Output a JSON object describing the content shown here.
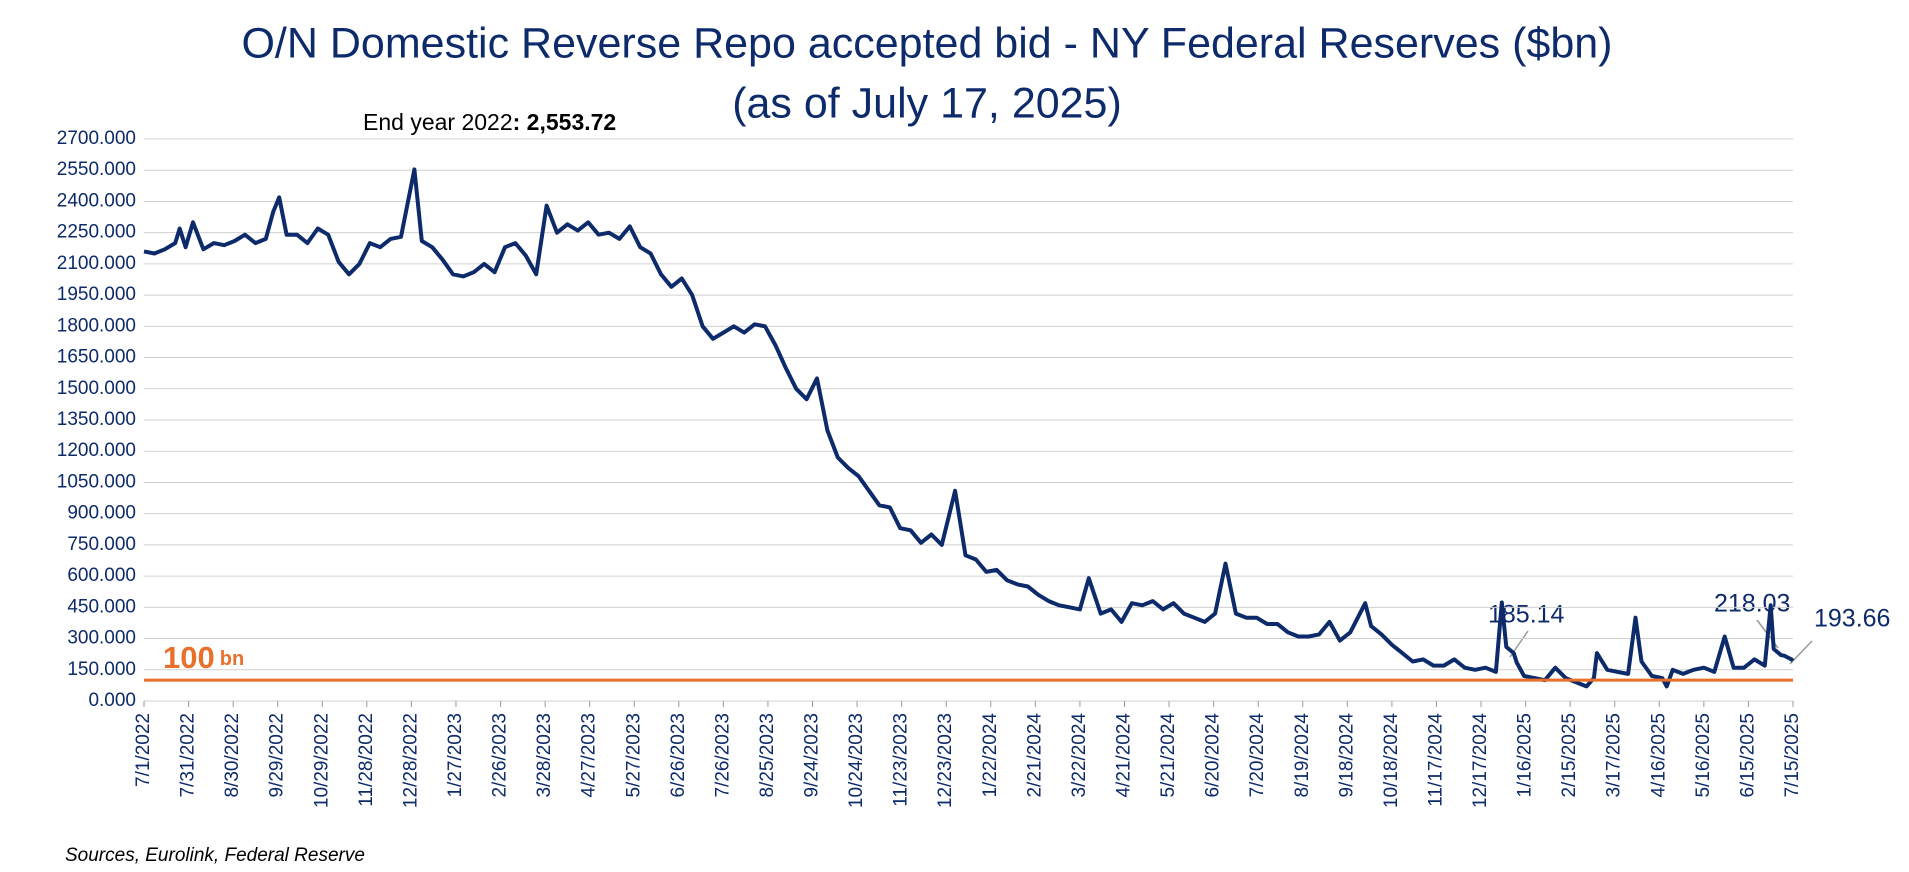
{
  "chart_data": {
    "type": "line",
    "title": "O/N Domestic Reverse Repo accepted bid - NY Federal Reserves ($bn)",
    "subtitle": "(as of July 17, 2025)",
    "source": "Sources, Eurolink, Federal Reserve",
    "color": "#0d2a6b",
    "grid": true,
    "annotations": [
      "End year 2022",
      ": 2,553.72",
      "185.14",
      "218.03",
      "193.66"
    ],
    "reference_line": {
      "value": 100,
      "unit": "bn",
      "color": "#e8702a"
    },
    "xlim": [
      "7/1/2022",
      "7/15/2025"
    ],
    "xticks": [
      "7/1/2022",
      "7/31/2022",
      "8/30/2022",
      "9/29/2022",
      "10/29/2022",
      "11/28/2022",
      "12/28/2022",
      "1/27/2023",
      "2/26/2023",
      "3/28/2023",
      "4/27/2023",
      "5/27/2023",
      "6/26/2023",
      "7/26/2023",
      "8/25/2023",
      "9/24/2023",
      "10/24/2023",
      "11/23/2023",
      "12/23/2023",
      "1/22/2024",
      "2/21/2024",
      "3/22/2024",
      "4/21/2024",
      "5/21/2024",
      "6/20/2024",
      "7/20/2024",
      "8/19/2024",
      "9/18/2024",
      "10/18/2024",
      "11/17/2024",
      "12/17/2024",
      "1/16/2025",
      "2/15/2025",
      "3/17/2025",
      "4/16/2025",
      "5/16/2025",
      "6/15/2025",
      "7/15/2025"
    ],
    "ylim": [
      0,
      2700
    ],
    "yticks": [
      {
        "value": 0,
        "label": "0.000"
      },
      {
        "value": 150,
        "label": "150.000"
      },
      {
        "value": 300,
        "label": "300.000"
      },
      {
        "value": 450,
        "label": "450.000"
      },
      {
        "value": 600,
        "label": "600.000"
      },
      {
        "value": 750,
        "label": "750.000"
      },
      {
        "value": 900,
        "label": "900.000"
      },
      {
        "value": 1050,
        "label": "1050.000"
      },
      {
        "value": 1200,
        "label": "1200.000"
      },
      {
        "value": 1350,
        "label": "1350.000"
      },
      {
        "value": 1500,
        "label": "1500.000"
      },
      {
        "value": 1650,
        "label": "1650.000"
      },
      {
        "value": 1800,
        "label": "1800.000"
      },
      {
        "value": 1950,
        "label": "1950.000"
      },
      {
        "value": 2100,
        "label": "2100.000"
      },
      {
        "value": 2250,
        "label": "2250.000"
      },
      {
        "value": 2400,
        "label": "2400.000"
      },
      {
        "value": 2550,
        "label": "2550.000"
      },
      {
        "value": 2700,
        "label": "2700.000"
      }
    ],
    "x": [
      "7/1/2022",
      "7/8/2022",
      "7/15/2022",
      "7/22/2022",
      "7/25/2022",
      "7/29/2022",
      "8/3/2022",
      "8/10/2022",
      "8/17/2022",
      "8/24/2022",
      "8/31/2022",
      "9/7/2022",
      "9/14/2022",
      "9/21/2022",
      "9/26/2022",
      "9/30/2022",
      "10/5/2022",
      "10/12/2022",
      "10/19/2022",
      "10/26/2022",
      "11/2/2022",
      "11/9/2022",
      "11/16/2022",
      "11/23/2022",
      "11/30/2022",
      "12/7/2022",
      "12/14/2022",
      "12/21/2022",
      "12/30/2022",
      "1/4/2023",
      "1/11/2023",
      "1/18/2023",
      "1/25/2023",
      "2/1/2023",
      "2/8/2023",
      "2/15/2023",
      "2/22/2023",
      "3/1/2023",
      "3/8/2023",
      "3/15/2023",
      "3/22/2023",
      "3/29/2023",
      "4/5/2023",
      "4/12/2023",
      "4/19/2023",
      "4/26/2023",
      "5/3/2023",
      "5/10/2023",
      "5/17/2023",
      "5/24/2023",
      "5/31/2023",
      "6/7/2023",
      "6/14/2023",
      "6/21/2023",
      "6/28/2023",
      "7/5/2023",
      "7/12/2023",
      "7/19/2023",
      "7/26/2023",
      "8/2/2023",
      "8/9/2023",
      "8/16/2023",
      "8/23/2023",
      "8/30/2023",
      "9/6/2023",
      "9/13/2023",
      "9/20/2023",
      "9/27/2023",
      "10/4/2023",
      "10/11/2023",
      "10/18/2023",
      "10/25/2023",
      "11/1/2023",
      "11/8/2023",
      "11/15/2023",
      "11/22/2023",
      "11/29/2023",
      "12/6/2023",
      "12/13/2023",
      "12/20/2023",
      "12/29/2023",
      "1/5/2024",
      "1/12/2024",
      "1/19/2024",
      "1/26/2024",
      "2/2/2024",
      "2/9/2024",
      "2/16/2024",
      "2/23/2024",
      "3/1/2024",
      "3/8/2024",
      "3/15/2024",
      "3/22/2024",
      "3/28/2024",
      "4/5/2024",
      "4/12/2024",
      "4/19/2024",
      "4/26/2024",
      "5/3/2024",
      "5/10/2024",
      "5/17/2024",
      "5/24/2024",
      "5/31/2024",
      "6/7/2024",
      "6/14/2024",
      "6/21/2024",
      "6/28/2024",
      "7/5/2024",
      "7/12/2024",
      "7/19/2024",
      "7/26/2024",
      "8/2/2024",
      "8/9/2024",
      "8/16/2024",
      "8/23/2024",
      "8/30/2024",
      "9/6/2024",
      "9/13/2024",
      "9/20/2024",
      "9/30/2024",
      "10/4/2024",
      "10/11/2024",
      "10/18/2024",
      "10/25/2024",
      "11/1/2024",
      "11/8/2024",
      "11/15/2024",
      "11/22/2024",
      "11/29/2024",
      "12/6/2024",
      "12/13/2024",
      "12/20/2024",
      "12/27/2024",
      "12/31/2024",
      "1/3/2025",
      "1/8/2025",
      "1/10/2025",
      "1/15/2025",
      "1/22/2025",
      "1/29/2025",
      "2/5/2025",
      "2/12/2025",
      "2/19/2025",
      "2/26/2025",
      "3/3/2025",
      "3/5/2025",
      "3/12/2025",
      "3/19/2025",
      "3/26/2025",
      "3/31/2025",
      "4/4/2025",
      "4/11/2025",
      "4/18/2025",
      "4/21/2025",
      "4/25/2025",
      "5/2/2025",
      "5/9/2025",
      "5/16/2025",
      "5/23/2025",
      "5/30/2025",
      "6/5/2025",
      "6/12/2025",
      "6/19/2025",
      "6/26/2025",
      "6/30/2025",
      "7/2/2025",
      "7/7/2025",
      "7/9/2025",
      "7/14/2025",
      "7/15/2025"
    ],
    "values": [
      2160,
      2150,
      2170,
      2200,
      2270,
      2180,
      2300,
      2170,
      2200,
      2190,
      2210,
      2240,
      2200,
      2220,
      2350,
      2420,
      2240,
      2240,
      2200,
      2270,
      2240,
      2110,
      2050,
      2100,
      2200,
      2180,
      2220,
      2230,
      2553.72,
      2210,
      2180,
      2120,
      2050,
      2040,
      2060,
      2100,
      2060,
      2180,
      2200,
      2140,
      2050,
      2380,
      2250,
      2290,
      2260,
      2300,
      2240,
      2250,
      2220,
      2280,
      2180,
      2150,
      2050,
      1990,
      2030,
      1950,
      1800,
      1740,
      1770,
      1800,
      1770,
      1810,
      1800,
      1710,
      1600,
      1500,
      1450,
      1550,
      1300,
      1170,
      1120,
      1080,
      1010,
      940,
      930,
      830,
      820,
      760,
      800,
      750,
      1010,
      700,
      680,
      620,
      630,
      580,
      560,
      550,
      510,
      480,
      460,
      450,
      440,
      590,
      420,
      440,
      380,
      470,
      460,
      480,
      440,
      470,
      420,
      400,
      380,
      420,
      660,
      420,
      400,
      400,
      370,
      370,
      330,
      310,
      310,
      320,
      380,
      290,
      330,
      470,
      360,
      320,
      270,
      230,
      190,
      200,
      170,
      170,
      200,
      160,
      150,
      160,
      140,
      473,
      260,
      230,
      185.14,
      120,
      110,
      100,
      160,
      110,
      90,
      70,
      110,
      230,
      150,
      140,
      130,
      400,
      190,
      120,
      110,
      70,
      150,
      130,
      150,
      160,
      140,
      310,
      160,
      160,
      200,
      170,
      460,
      250,
      220,
      218.03,
      200,
      193.66
    ]
  }
}
